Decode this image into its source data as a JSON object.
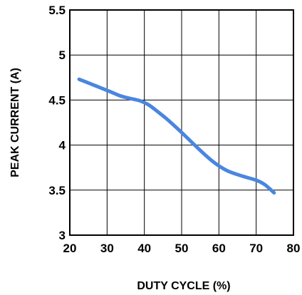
{
  "chart_data": {
    "type": "line",
    "title": "",
    "xlabel": "DUTY CYCLE (%)",
    "ylabel": "PEAK CURRENT (A)",
    "xlim": [
      20,
      80
    ],
    "ylim": [
      3,
      5.5
    ],
    "x_ticks": [
      "20",
      "30",
      "40",
      "50",
      "60",
      "70",
      "80"
    ],
    "y_ticks": [
      "3",
      "3.5",
      "4",
      "4.5",
      "5",
      "5.5"
    ],
    "grid": true,
    "legend": "none",
    "series": [
      {
        "color": "#4a86e0",
        "x": [
          22.5,
          25,
          28,
          31,
          34,
          37,
          39,
          41,
          43,
          46,
          50,
          54,
          58,
          62,
          66,
          70,
          72,
          73.5,
          74.8
        ],
        "y": [
          4.73,
          4.69,
          4.64,
          4.59,
          4.54,
          4.51,
          4.49,
          4.45,
          4.39,
          4.29,
          4.14,
          3.98,
          3.83,
          3.72,
          3.66,
          3.61,
          3.57,
          3.52,
          3.47
        ]
      }
    ]
  }
}
